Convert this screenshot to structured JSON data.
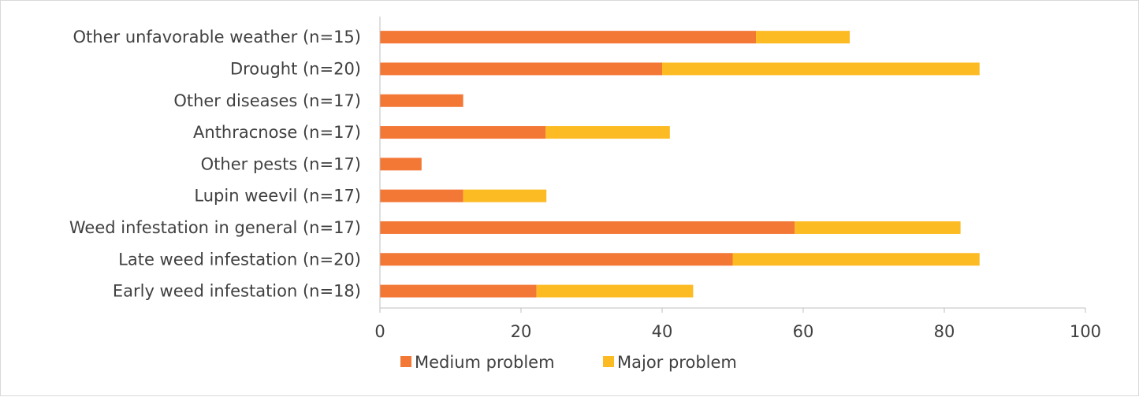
{
  "chart_data": {
    "type": "bar",
    "orientation": "horizontal",
    "stacked": true,
    "categories": [
      "Other unfavorable weather (n=15)",
      "Drought (n=20)",
      "Other diseases (n=17)",
      "Anthracnose (n=17)",
      "Other pests (n=17)",
      "Lupin weevil (n=17)",
      "Weed infestation in general (n=17)",
      "Late weed infestation (n=20)",
      "Early weed infestation (n=18)"
    ],
    "series": [
      {
        "name": "Medium problem",
        "color": "#F37735",
        "values": [
          53.3,
          40.0,
          11.8,
          23.5,
          5.9,
          11.8,
          58.8,
          50.0,
          22.2
        ]
      },
      {
        "name": "Major problem",
        "color": "#FDBB23",
        "values": [
          13.3,
          45.0,
          0,
          17.6,
          0,
          11.8,
          23.5,
          35.0,
          22.2
        ]
      }
    ],
    "xlim": [
      0,
      100
    ],
    "xticks": [
      0,
      20,
      40,
      60,
      80,
      100
    ],
    "grid": false,
    "legend_position": "bottom"
  }
}
